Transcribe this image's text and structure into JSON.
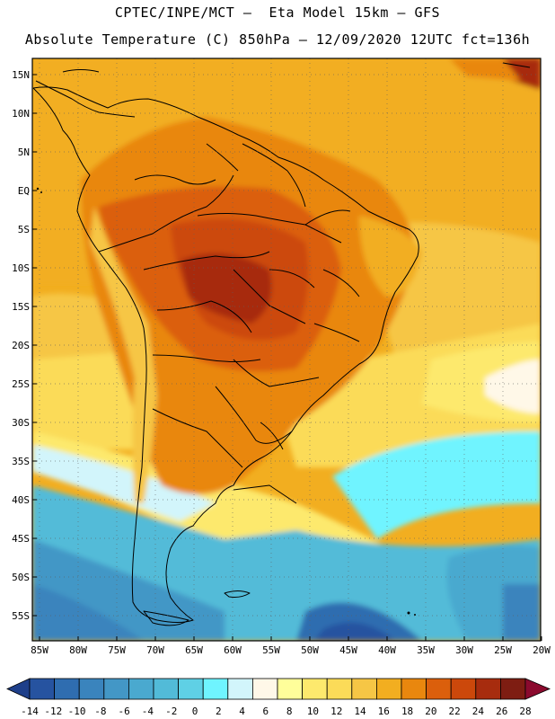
{
  "header": {
    "line1": "CPTEC/INPE/MCT —  Eta Model 15km — GFS",
    "line2": "Absolute Temperature (C) 850hPa — 12/09/2020 12UTC fct=136h"
  },
  "map": {
    "lat_labels": [
      "15N",
      "10N",
      "5N",
      "EQ",
      "5S",
      "10S",
      "15S",
      "20S",
      "25S",
      "30S",
      "35S",
      "40S",
      "45S",
      "50S",
      "55S"
    ],
    "lon_labels": [
      "85W",
      "80W",
      "75W",
      "70W",
      "65W",
      "60W",
      "55W",
      "50W",
      "45W",
      "40W",
      "35W",
      "30W",
      "25W",
      "20W"
    ]
  },
  "legend": {
    "labels": [
      "-14",
      "-12",
      "-10",
      "-8",
      "-6",
      "-4",
      "-2",
      "0",
      "2",
      "4",
      "6",
      "8",
      "10",
      "12",
      "14",
      "16",
      "18",
      "20",
      "22",
      "24",
      "26",
      "28"
    ],
    "colors": [
      "#1e3f8a",
      "#2653a0",
      "#2f6db0",
      "#3a84bd",
      "#4397c6",
      "#4aa9cf",
      "#52bbd8",
      "#5fd0e5",
      "#6ff4ff",
      "#d2f5fb",
      "#fff8e8",
      "#fffe9a",
      "#fde96d",
      "#fbdb58",
      "#f6c645",
      "#f2ae20",
      "#e9870e",
      "#db5f0c",
      "#cc480b",
      "#a72c0e",
      "#7e1d12",
      "#8b0a2e"
    ]
  }
}
